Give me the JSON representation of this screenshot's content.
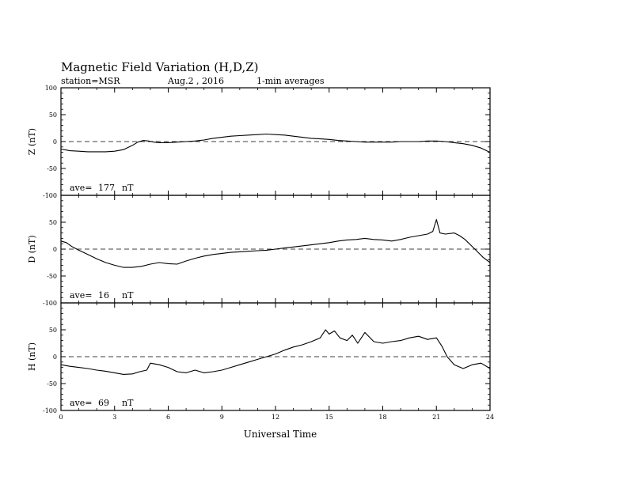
{
  "header": {
    "title": "Magnetic Field Variation (H,D,Z)",
    "station": "station=MSR",
    "date": "Aug.2 , 2016",
    "averaging": "1-min averages"
  },
  "chart_data": [
    {
      "type": "line",
      "panel": "Z",
      "ylabel": "Z (nT)",
      "ylim": [
        -100,
        100
      ],
      "yticks": [
        -100,
        -50,
        0,
        50,
        100
      ],
      "ave_label": "ave=",
      "ave_value": "177",
      "ave_unit": "nT",
      "zero_line": "dashed",
      "series": [
        {
          "x": [
            0,
            0.5,
            1,
            1.5,
            2,
            2.5,
            3,
            3.5,
            4,
            4.3,
            4.6,
            4.9,
            5.2,
            5.5,
            6,
            6.5,
            7,
            7.5,
            8,
            8.5,
            9,
            9.5,
            10,
            10.5,
            11,
            11.5,
            12,
            12.5,
            13,
            13.5,
            14,
            14.5,
            15,
            15.5,
            16,
            16.5,
            17,
            17.5,
            18,
            18.5,
            19,
            19.5,
            20,
            20.5,
            21,
            21.5,
            22,
            22.5,
            23,
            23.5,
            24
          ],
          "y": [
            -14,
            -17,
            -18,
            -19,
            -19,
            -19,
            -18,
            -15,
            -7,
            -1,
            2,
            1,
            -1,
            -2,
            -2,
            -1,
            0,
            1,
            3,
            6,
            8,
            10,
            11,
            12,
            13,
            14,
            13,
            12,
            10,
            8,
            6,
            5,
            4,
            2,
            1,
            0,
            -1,
            -1,
            -1,
            -1,
            0,
            0,
            0,
            1,
            1,
            0,
            -2,
            -4,
            -7,
            -12,
            -20
          ]
        }
      ]
    },
    {
      "type": "line",
      "panel": "D",
      "ylabel": "D (nT)",
      "ylim": [
        -100,
        100
      ],
      "yticks": [
        -100,
        -50,
        0,
        50,
        100
      ],
      "ave_label": "ave=",
      "ave_value": "16",
      "ave_unit": "nT",
      "zero_line": "dashed",
      "series": [
        {
          "x": [
            0,
            0.3,
            0.6,
            1,
            1.5,
            2,
            2.5,
            3,
            3.5,
            4,
            4.5,
            5,
            5.5,
            6,
            6.5,
            7,
            7.5,
            8,
            8.5,
            9,
            9.5,
            10,
            10.5,
            11,
            11.5,
            12,
            12.5,
            13,
            13.5,
            14,
            14.5,
            15,
            15.5,
            16,
            16.5,
            17,
            17.5,
            18,
            18.5,
            19,
            19.5,
            20,
            20.5,
            20.8,
            21,
            21.2,
            21.5,
            22,
            22.3,
            22.6,
            23,
            23.3,
            23.6,
            24
          ],
          "y": [
            15,
            12,
            5,
            -2,
            -10,
            -18,
            -25,
            -30,
            -34,
            -34,
            -32,
            -28,
            -25,
            -27,
            -28,
            -22,
            -17,
            -13,
            -10,
            -8,
            -6,
            -5,
            -4,
            -3,
            -2,
            0,
            2,
            4,
            6,
            8,
            10,
            12,
            15,
            17,
            18,
            20,
            18,
            17,
            15,
            18,
            22,
            25,
            28,
            33,
            55,
            30,
            28,
            30,
            25,
            18,
            5,
            -5,
            -15,
            -25
          ]
        }
      ]
    },
    {
      "type": "line",
      "panel": "H",
      "ylabel": "H (nT)",
      "ylim": [
        -100,
        100
      ],
      "yticks": [
        -100,
        -50,
        0,
        50,
        100
      ],
      "ave_label": "ave=",
      "ave_value": "69",
      "ave_unit": "nT",
      "zero_line": "dashed",
      "series": [
        {
          "x": [
            0,
            0.5,
            1,
            1.5,
            2,
            2.5,
            3,
            3.5,
            4,
            4.4,
            4.8,
            5,
            5.5,
            6,
            6.5,
            7,
            7.5,
            8,
            8.5,
            9,
            9.5,
            10,
            10.5,
            11,
            11.5,
            12,
            12.5,
            13,
            13.5,
            14,
            14.5,
            14.8,
            15,
            15.3,
            15.6,
            16,
            16.3,
            16.6,
            17,
            17.5,
            18,
            18.5,
            19,
            19.5,
            20,
            20.5,
            21,
            21.3,
            21.6,
            22,
            22.5,
            23,
            23.5,
            24
          ],
          "y": [
            -15,
            -18,
            -20,
            -22,
            -25,
            -27,
            -30,
            -33,
            -32,
            -28,
            -25,
            -12,
            -15,
            -20,
            -28,
            -30,
            -25,
            -30,
            -28,
            -25,
            -20,
            -15,
            -10,
            -5,
            0,
            5,
            12,
            18,
            22,
            28,
            35,
            50,
            42,
            48,
            35,
            30,
            40,
            25,
            45,
            28,
            25,
            28,
            30,
            35,
            38,
            32,
            35,
            20,
            0,
            -15,
            -22,
            -15,
            -12,
            -22
          ]
        }
      ]
    }
  ],
  "xaxis": {
    "label": "Universal Time",
    "xlim": [
      0,
      24
    ],
    "ticks": [
      0,
      3,
      6,
      9,
      12,
      15,
      18,
      21,
      24
    ]
  }
}
